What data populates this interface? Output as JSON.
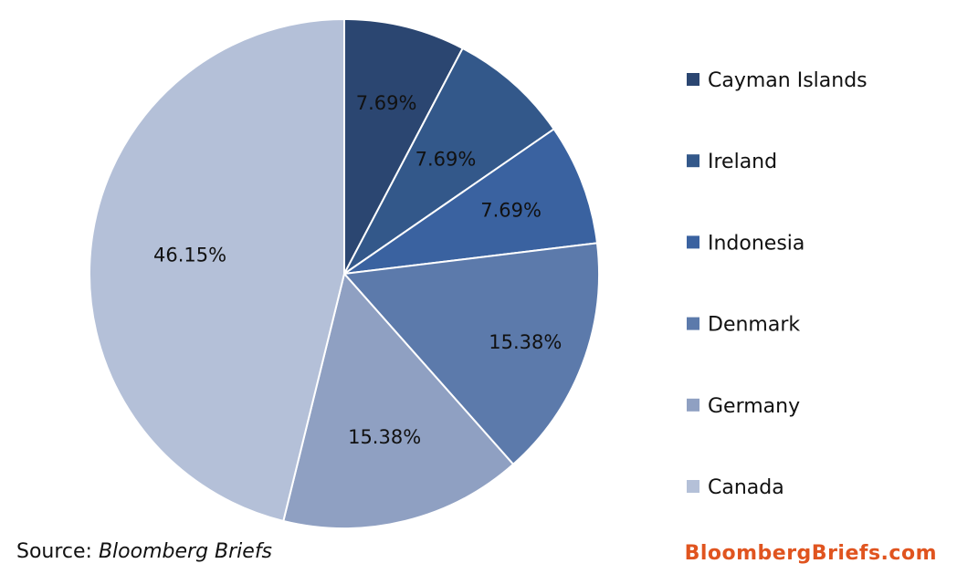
{
  "chart_data": {
    "type": "pie",
    "categories": [
      "Cayman Islands",
      "Ireland",
      "Indonesia",
      "Denmark",
      "Germany",
      "Canada"
    ],
    "values": [
      7.69,
      7.69,
      7.69,
      15.38,
      15.38,
      46.15
    ],
    "value_labels": [
      "7.69%",
      "7.69%",
      "7.69%",
      "15.38%",
      "15.38%",
      "46.15%"
    ],
    "colors": [
      "#2b4671",
      "#33588a",
      "#3a62a0",
      "#5c7aab",
      "#8fa0c2",
      "#b4c0d8"
    ],
    "start_angle": "12 o'clock, clockwise",
    "legend_position": "right"
  },
  "footer": {
    "source_prefix": "Source: ",
    "source_name": "Bloomberg Briefs",
    "brand": "BloombergBriefs.com"
  }
}
